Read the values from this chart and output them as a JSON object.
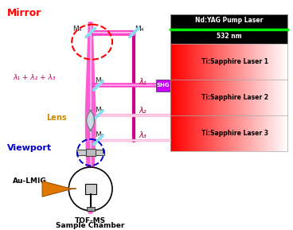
{
  "bg_color": "#ffffff",
  "mirror_label": "Mirror",
  "mirror_color": "#ff0000",
  "viewport_label": "Viewport",
  "viewport_color": "#0000cc",
  "lens_label": "Lens",
  "lens_color": "#cc8800",
  "aulimg_label": "Au-LMIG",
  "tofms_line1": "TOF-MS",
  "tofms_line2": "Sample Chamber",
  "lambda_label": "λ₁ + λ₂ + λ₃",
  "lambda1_label": "λ₁",
  "lambda2_label": "λ₂",
  "lambda3_label": "λ₃",
  "M4L_label": "M₄",
  "M4R_label": "M₄",
  "M1_label": "M₁",
  "M2_label": "M₂",
  "M3_label": "M₃",
  "SHG_label": "SHG",
  "SHG_color": "#cc00ff",
  "nd_yag_text1": "Nd:YAG Pump Laser",
  "nd_yag_text2": "532 nm",
  "nd_yag_bg": "#000000",
  "nd_yag_line_color": "#00ee00",
  "ti_s1_label": "Ti:Sapphire Laser 1",
  "ti_s2_label": "Ti:Sapphire Laser 2",
  "ti_s3_label": "Ti:Sapphire Laser 3",
  "beam_main": "#ff44cc",
  "beam_pink": "#ff88cc",
  "beam_light": "#ffbbdd",
  "mirror_cyan": "#88ddee",
  "beam_white": "#ffffff"
}
